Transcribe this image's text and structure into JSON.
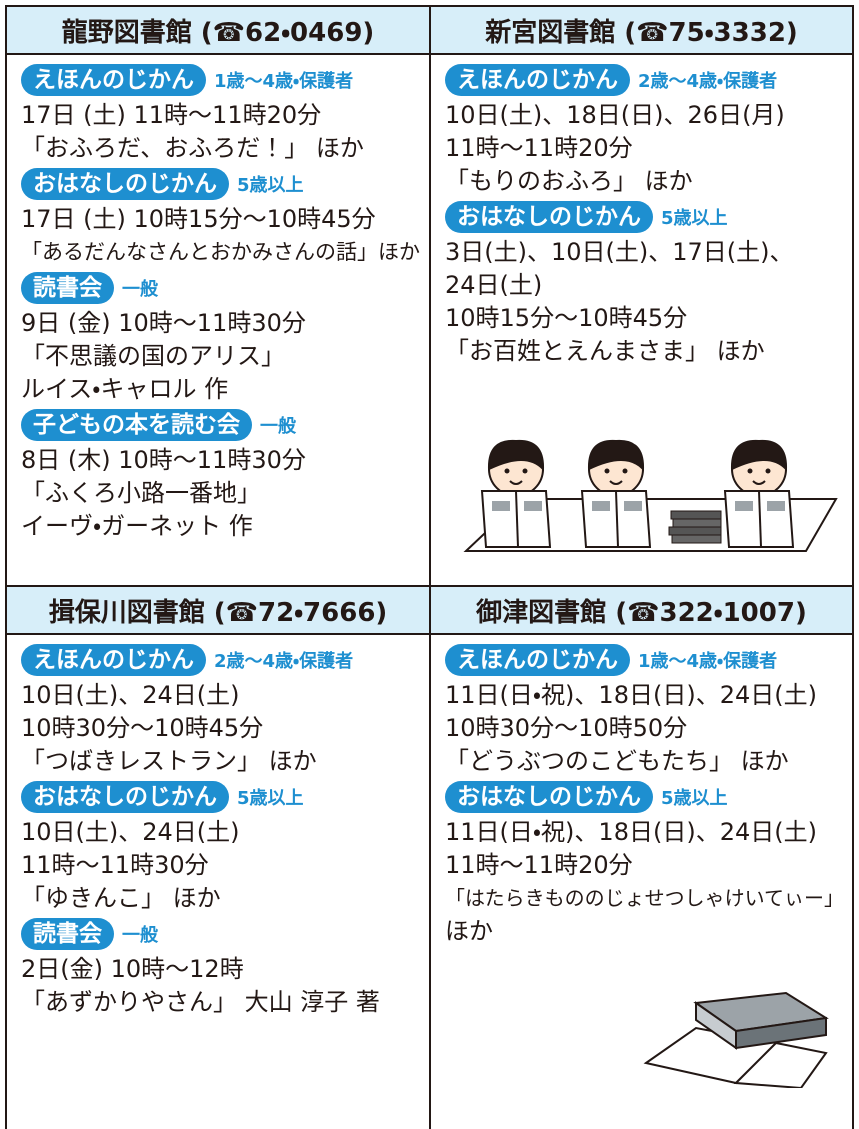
{
  "libraries": [
    {
      "header": "龍野図書館 (☎62・0469)",
      "events": [
        {
          "label": "えほんのじかん",
          "audience": "1歳～4歳・保護者",
          "lines": [
            "17日 (土) 11時～11時20分",
            "「おふろだ、おふろだ！」 ほか"
          ]
        },
        {
          "label": "おはなしのじかん",
          "audience": "5歳以上",
          "lines": [
            "17日 (土) 10時15分～10時45分",
            "「あるだんなさんとおかみさんの話」ほか"
          ]
        },
        {
          "label": "読書会",
          "audience": "一般",
          "lines": [
            " 9日 (金) 10時～11時30分",
            "「不思議の国のアリス」",
            "ルイス・キャロル 作"
          ]
        },
        {
          "label": "子どもの本を読む会",
          "audience": "一般",
          "lines": [
            " 8日 (木) 10時～11時30分",
            "「ふくろ小路一番地」",
            "イーヴ・ガーネット 作"
          ]
        }
      ]
    },
    {
      "header": "新宮図書館 (☎75・3332)",
      "events": [
        {
          "label": "えほんのじかん",
          "audience": "2歳～4歳・保護者",
          "lines": [
            "10日(土)、18日(日)、26日(月)",
            "11時～11時20分",
            "「もりのおふろ」 ほか"
          ]
        },
        {
          "label": "おはなしのじかん",
          "audience": "5歳以上",
          "lines": [
            " 3日(土)、10日(土)、17日(土)、",
            "24日(土)",
            "10時15分～10時45分",
            "「お百姓とえんまさま」 ほか"
          ]
        }
      ]
    },
    {
      "header": "揖保川図書館 (☎72・7666)",
      "events": [
        {
          "label": "えほんのじかん",
          "audience": "2歳～4歳・保護者",
          "lines": [
            "10日(土)、24日(土)",
            "10時30分～10時45分",
            "「つばきレストラン」 ほか"
          ]
        },
        {
          "label": "おはなしのじかん",
          "audience": "5歳以上",
          "lines": [
            "10日(土)、24日(土)",
            "11時～11時30分",
            "「ゆきんこ」 ほか"
          ]
        },
        {
          "label": "読書会",
          "audience": "一般",
          "lines": [
            " 2日(金) 10時～12時",
            "「あずかりやさん」 大山 淳子 著"
          ]
        }
      ]
    },
    {
      "header": "御津図書館 (☎322・1007)",
      "events": [
        {
          "label": "えほんのじかん",
          "audience": "1歳～4歳・保護者",
          "lines": [
            "11日(日・祝)、18日(日)、24日(土)",
            "10時30分～10時50分",
            "「どうぶつのこどもたち」 ほか"
          ]
        },
        {
          "label": "おはなしのじかん",
          "audience": "5歳以上",
          "lines": [
            "11日(日・祝)、18日(日)、24日(土)",
            "11時～11時20分",
            "「はたらきもののじょせつしゃけいてぃー」",
            "ほか"
          ]
        }
      ]
    }
  ]
}
